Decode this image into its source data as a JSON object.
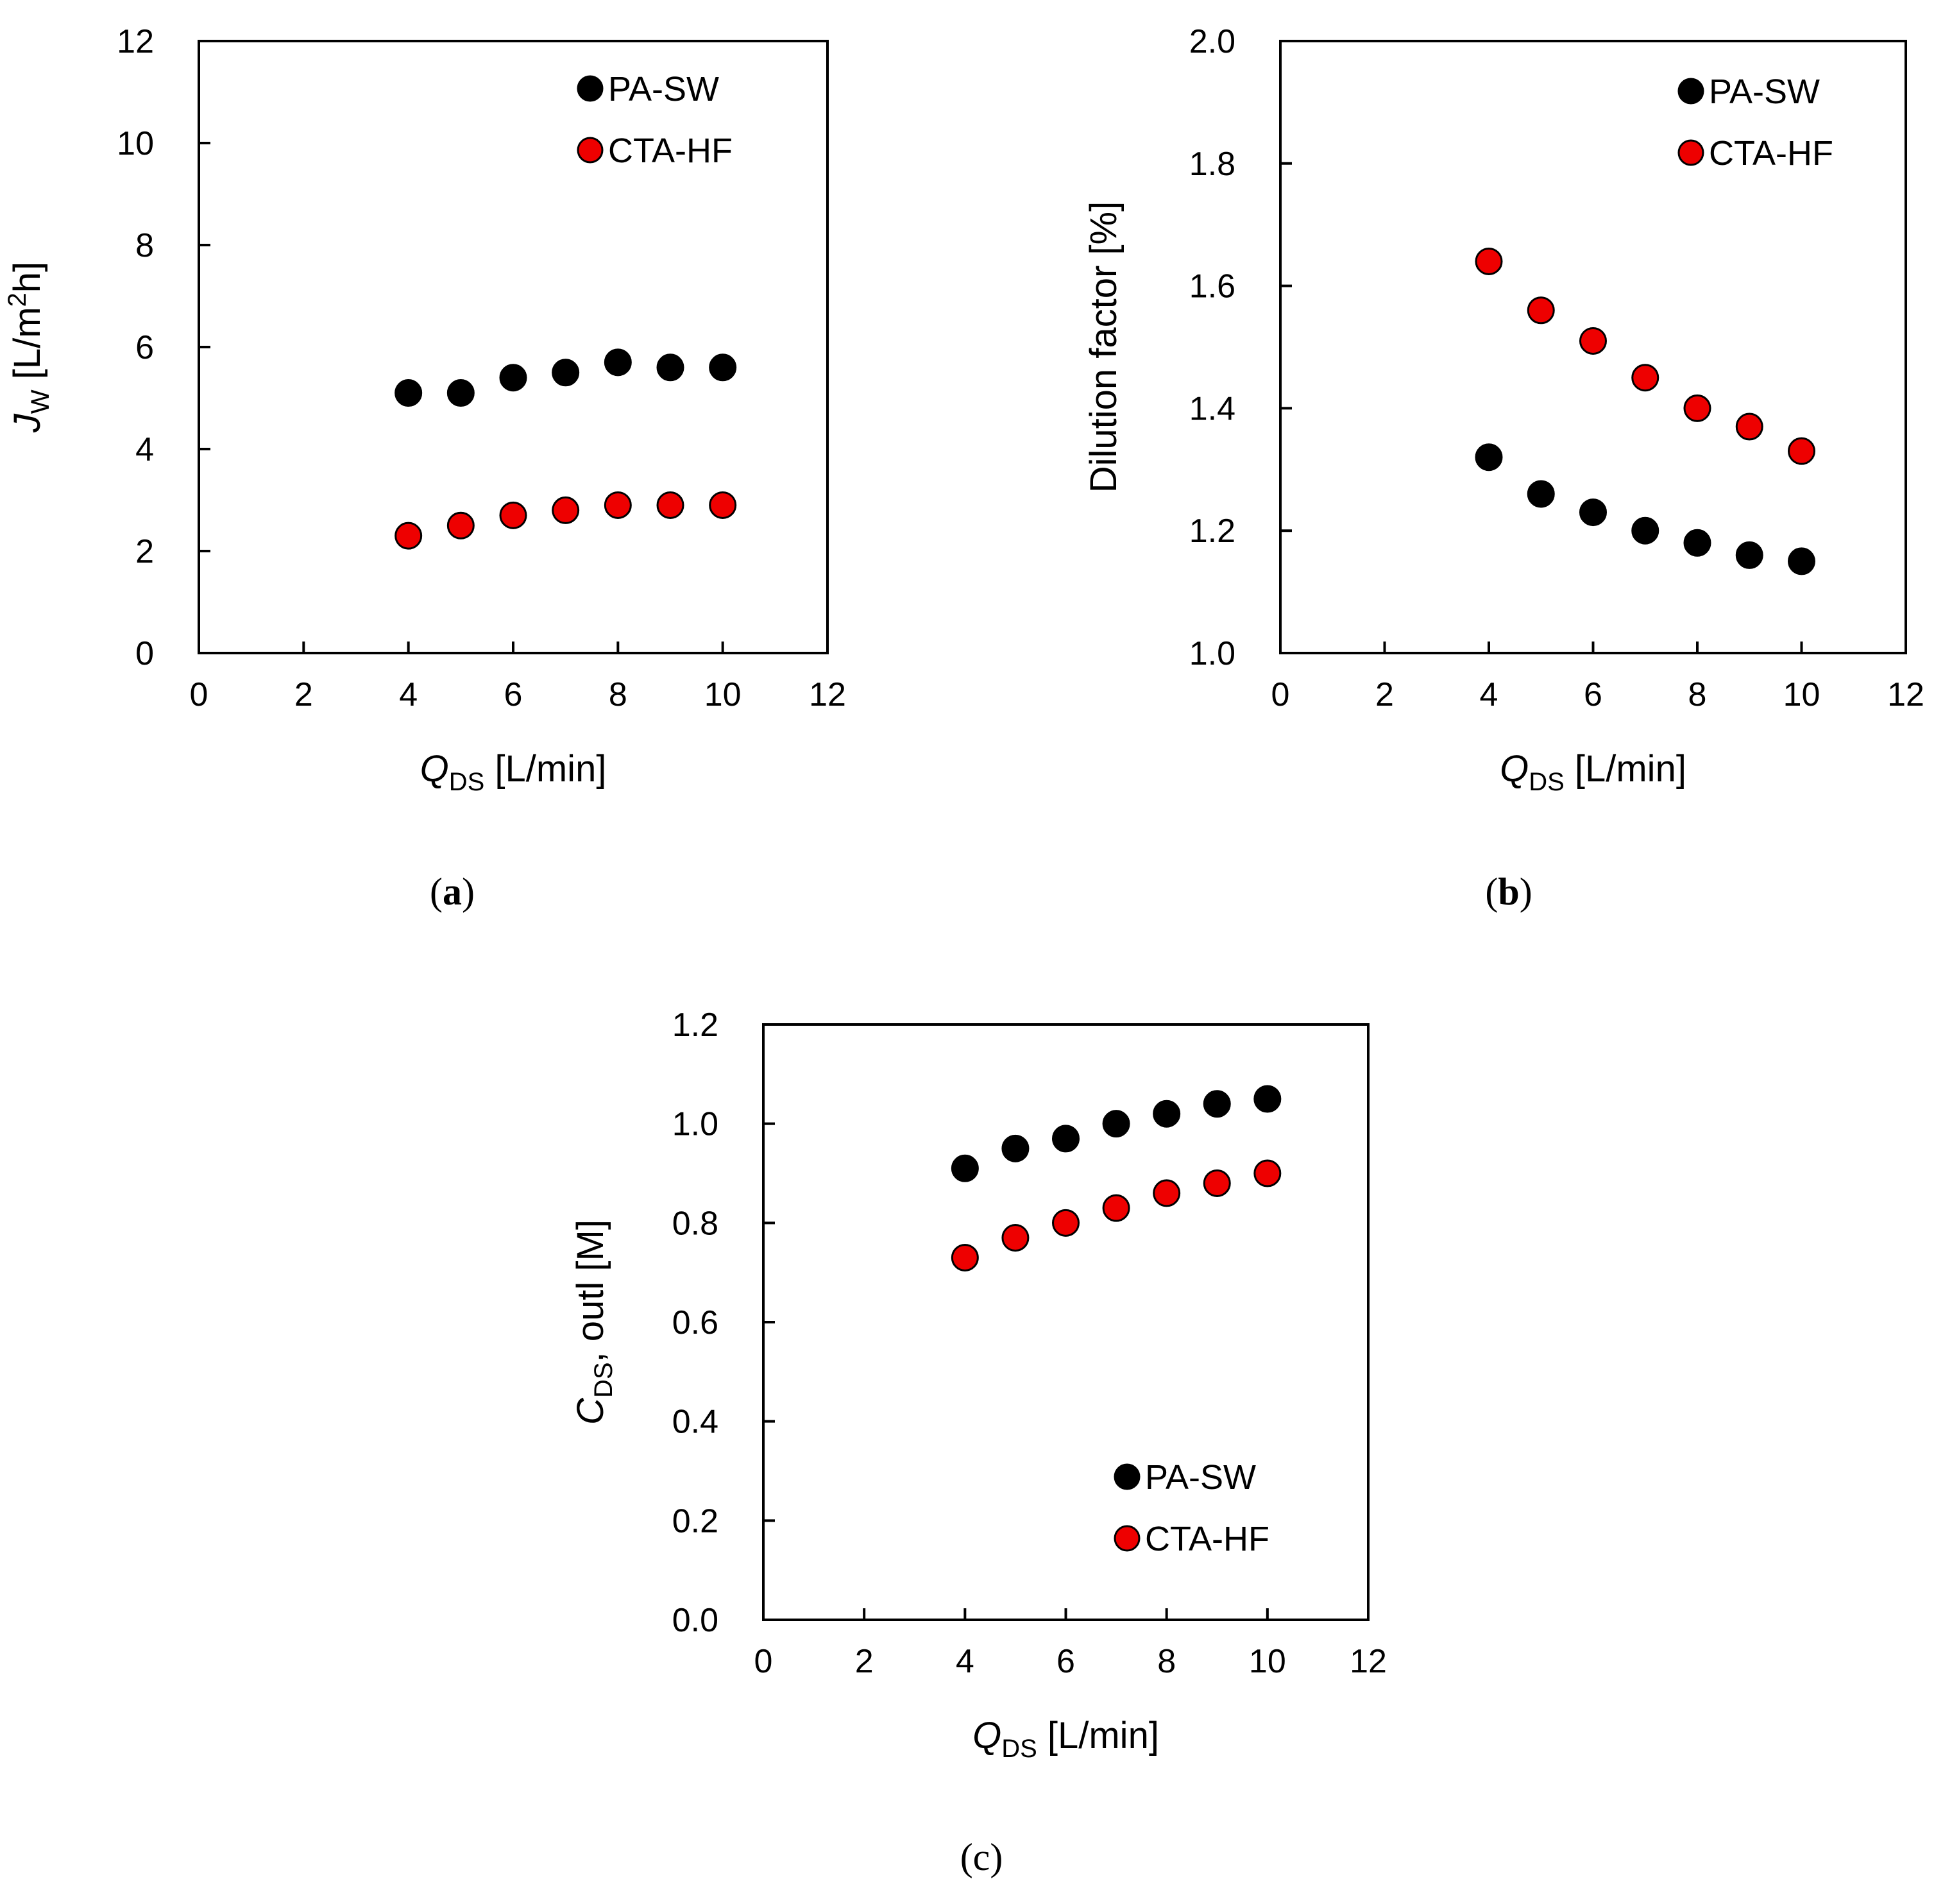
{
  "colors": {
    "PA-SW": "#000000",
    "CTA-HF": "#ee0000",
    "marker_edge": "#000000"
  },
  "chart_data": [
    {
      "id": "a",
      "type": "scatter",
      "panel_label": "a",
      "panel_label_bold": true,
      "xlim": [
        0,
        12
      ],
      "ylim": [
        0,
        12
      ],
      "xticks": [
        "0",
        "2",
        "4",
        "6",
        "8",
        "10",
        "12"
      ],
      "yticks": [
        "0",
        "2",
        "4",
        "6",
        "8",
        "10",
        "12"
      ],
      "xlabel": {
        "main": "Q",
        "sub": "DS",
        "rest": " [L/min]"
      },
      "ylabel": {
        "main": "J",
        "sub": "W",
        "rest": " [L/m",
        "sup": "2",
        "rest2": "h]"
      },
      "legend_position": "top-right",
      "series": [
        {
          "name": "PA-SW",
          "x": [
            4,
            5,
            6,
            7,
            8,
            9,
            10
          ],
          "y": [
            5.1,
            5.1,
            5.4,
            5.5,
            5.7,
            5.6,
            5.6
          ]
        },
        {
          "name": "CTA-HF",
          "x": [
            4,
            5,
            6,
            7,
            8,
            9,
            10
          ],
          "y": [
            2.3,
            2.5,
            2.7,
            2.8,
            2.9,
            2.9,
            2.9
          ]
        }
      ]
    },
    {
      "id": "b",
      "type": "scatter",
      "panel_label": "b",
      "panel_label_bold": true,
      "xlim": [
        0,
        12
      ],
      "ylim": [
        1.0,
        2.0
      ],
      "xticks": [
        "0",
        "2",
        "4",
        "6",
        "8",
        "10",
        "12"
      ],
      "yticks": [
        "1.0",
        "1.2",
        "1.4",
        "1.6",
        "1.8",
        "2.0"
      ],
      "xlabel": {
        "main": "Q",
        "sub": "DS",
        "rest": " [L/min]"
      },
      "ylabel": {
        "main": "Dilution factor [%]"
      },
      "legend_position": "top-right",
      "series": [
        {
          "name": "PA-SW",
          "x": [
            4,
            5,
            6,
            7,
            8,
            9,
            10
          ],
          "y": [
            1.32,
            1.26,
            1.23,
            1.2,
            1.18,
            1.16,
            1.15
          ]
        },
        {
          "name": "CTA-HF",
          "x": [
            4,
            5,
            6,
            7,
            8,
            9,
            10
          ],
          "y": [
            1.64,
            1.56,
            1.51,
            1.45,
            1.4,
            1.37,
            1.33
          ]
        }
      ]
    },
    {
      "id": "c",
      "type": "scatter",
      "panel_label": "c",
      "panel_label_bold": false,
      "xlim": [
        0,
        12
      ],
      "ylim": [
        0.0,
        1.2
      ],
      "xticks": [
        "0",
        "2",
        "4",
        "6",
        "8",
        "10",
        "12"
      ],
      "yticks": [
        "0.0",
        "0.2",
        "0.4",
        "0.6",
        "0.8",
        "1.0",
        "1.2"
      ],
      "xlabel": {
        "main": "Q",
        "sub": "DS",
        "rest": " [L/min]"
      },
      "ylabel": {
        "main": "C",
        "sub": "DS",
        "rest": ", outl [M]"
      },
      "legend_position": "bottom-right",
      "series": [
        {
          "name": "PA-SW",
          "x": [
            4,
            5,
            6,
            7,
            8,
            9,
            10
          ],
          "y": [
            0.91,
            0.95,
            0.97,
            1.0,
            1.02,
            1.04,
            1.05
          ]
        },
        {
          "name": "CTA-HF",
          "x": [
            4,
            5,
            6,
            7,
            8,
            9,
            10
          ],
          "y": [
            0.73,
            0.77,
            0.8,
            0.83,
            0.86,
            0.88,
            0.9
          ]
        }
      ]
    }
  ]
}
